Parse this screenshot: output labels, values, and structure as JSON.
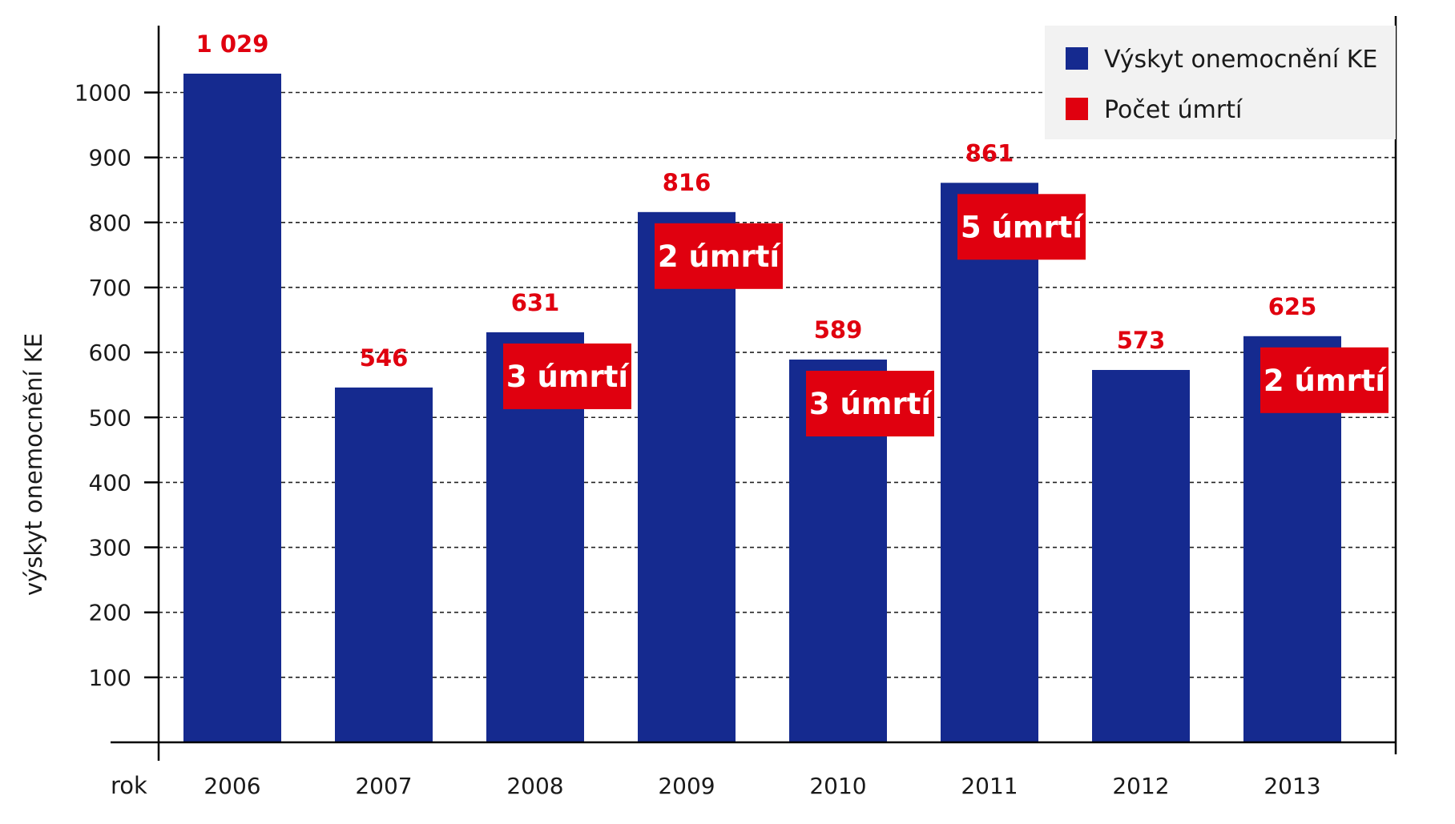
{
  "chart_data": {
    "type": "bar",
    "title": "",
    "xlabel": "rok",
    "ylabel": "výskyt onemocnění KE",
    "ylim": [
      0,
      1050
    ],
    "yticks": [
      100,
      200,
      300,
      400,
      500,
      600,
      700,
      800,
      900,
      1000
    ],
    "grid": true,
    "legend_position": "top-right",
    "categories": [
      "2006",
      "2007",
      "2008",
      "2009",
      "2010",
      "2011",
      "2012",
      "2013"
    ],
    "series": [
      {
        "name": "Výskyt onemocnění KE",
        "color": "#152a8f",
        "values": [
          1029,
          546,
          631,
          816,
          589,
          861,
          573,
          625
        ],
        "value_labels": [
          "1 029",
          "546",
          "631",
          "816",
          "589",
          "861",
          "573",
          "625"
        ]
      },
      {
        "name": "Počet úmrtí",
        "color": "#e0000f",
        "values": [
          null,
          null,
          3,
          2,
          3,
          5,
          null,
          2
        ],
        "labels": [
          null,
          null,
          "3 úmrtí",
          "2 úmrtí",
          "3 úmrtí",
          "5 úmrtí",
          null,
          "2 úmrtí"
        ]
      }
    ]
  }
}
